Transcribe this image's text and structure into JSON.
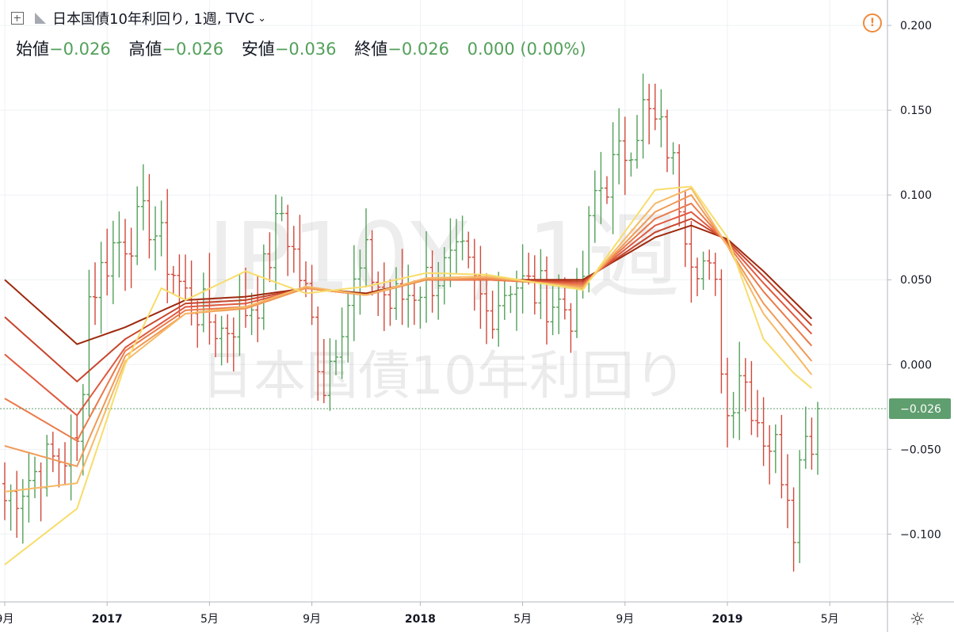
{
  "header": {
    "symbol_title": "日本国債10年利回り",
    "interval": "1週",
    "source": "TVC",
    "watermark_symbol": "JP10Y, 1週",
    "watermark_name": "日本国債10年利回り"
  },
  "ohlc": {
    "open_label": "始値",
    "open": "−0.026",
    "high_label": "高値",
    "high": "−0.026",
    "low_label": "安値",
    "low": "−0.036",
    "close_label": "終値",
    "close": "−0.026",
    "change": "0.000 (0.00%)"
  },
  "icons": {
    "alert": "alert-circle-icon",
    "settings": "gear-icon",
    "add": "plus-square-icon",
    "flag": "flag-icon"
  },
  "colors": {
    "up": "#53a05a",
    "down": "#d1483a",
    "last_price_bg": "#5f9e6e"
  },
  "chart_data": {
    "type": "ohlc",
    "y_ticks": [
      0.2,
      0.15,
      0.1,
      0.05,
      0.0,
      -0.05,
      -0.1
    ],
    "y_tick_labels": [
      "0.200",
      "0.150",
      "0.100",
      "0.050",
      "0.000",
      "−0.050",
      "−0.100"
    ],
    "ylim": [
      -0.14,
      0.215
    ],
    "x_ticks": [
      {
        "label": "9月",
        "i": 0
      },
      {
        "label": "2017",
        "i": 17
      },
      {
        "label": "5月",
        "i": 34
      },
      {
        "label": "9月",
        "i": 51
      },
      {
        "label": "2018",
        "i": 69
      },
      {
        "label": "5月",
        "i": 86
      },
      {
        "label": "9月",
        "i": 103
      },
      {
        "label": "2019",
        "i": 120
      },
      {
        "label": "5月",
        "i": 137
      }
    ],
    "n_bars": 136,
    "last_price": -0.026,
    "last_price_label": "−0.026",
    "anchors": [
      [
        0,
        -0.08
      ],
      [
        6,
        -0.06
      ],
      [
        12,
        -0.05
      ],
      [
        14,
        0.04
      ],
      [
        18,
        0.07
      ],
      [
        24,
        0.085
      ],
      [
        30,
        0.04
      ],
      [
        36,
        0.02
      ],
      [
        42,
        0.04
      ],
      [
        46,
        0.09
      ],
      [
        50,
        0.04
      ],
      [
        53,
        -0.01
      ],
      [
        56,
        0.03
      ],
      [
        60,
        0.06
      ],
      [
        64,
        0.035
      ],
      [
        70,
        0.05
      ],
      [
        76,
        0.06
      ],
      [
        80,
        0.03
      ],
      [
        84,
        0.05
      ],
      [
        90,
        0.04
      ],
      [
        95,
        0.03
      ],
      [
        98,
        0.1
      ],
      [
        102,
        0.12
      ],
      [
        106,
        0.15
      ],
      [
        110,
        0.13
      ],
      [
        114,
        0.07
      ],
      [
        116,
        0.06
      ],
      [
        118,
        0.04
      ],
      [
        120,
        -0.03
      ],
      [
        122,
        0.0
      ],
      [
        126,
        -0.04
      ],
      [
        128,
        -0.05
      ],
      [
        130,
        -0.07
      ],
      [
        131,
        -0.09
      ],
      [
        133,
        -0.03
      ],
      [
        134,
        -0.05
      ],
      [
        135,
        -0.026
      ]
    ],
    "ribbons": [
      {
        "color": "#9e2a0f",
        "points": [
          [
            0,
            0.05
          ],
          [
            12,
            0.012
          ],
          [
            20,
            0.022
          ],
          [
            30,
            0.038
          ],
          [
            40,
            0.04
          ],
          [
            50,
            0.045
          ],
          [
            60,
            0.042
          ],
          [
            70,
            0.05
          ],
          [
            80,
            0.05
          ],
          [
            96,
            0.05
          ],
          [
            108,
            0.075
          ],
          [
            114,
            0.082
          ],
          [
            120,
            0.074
          ],
          [
            126,
            0.055
          ],
          [
            134,
            0.027
          ]
        ]
      },
      {
        "color": "#c7452c",
        "points": [
          [
            0,
            0.028
          ],
          [
            12,
            -0.01
          ],
          [
            20,
            0.015
          ],
          [
            30,
            0.036
          ],
          [
            40,
            0.038
          ],
          [
            50,
            0.045
          ],
          [
            60,
            0.041
          ],
          [
            70,
            0.05
          ],
          [
            80,
            0.05
          ],
          [
            96,
            0.049
          ],
          [
            108,
            0.078
          ],
          [
            114,
            0.086
          ],
          [
            120,
            0.073
          ],
          [
            126,
            0.052
          ],
          [
            134,
            0.023
          ]
        ]
      },
      {
        "color": "#e05a40",
        "points": [
          [
            0,
            0.006
          ],
          [
            12,
            -0.03
          ],
          [
            20,
            0.01
          ],
          [
            30,
            0.034
          ],
          [
            40,
            0.036
          ],
          [
            50,
            0.045
          ],
          [
            60,
            0.041
          ],
          [
            70,
            0.05
          ],
          [
            80,
            0.05
          ],
          [
            96,
            0.048
          ],
          [
            108,
            0.082
          ],
          [
            114,
            0.09
          ],
          [
            120,
            0.072
          ],
          [
            126,
            0.048
          ],
          [
            134,
            0.018
          ]
        ]
      },
      {
        "color": "#ea7a4a",
        "points": [
          [
            0,
            -0.02
          ],
          [
            12,
            -0.045
          ],
          [
            20,
            0.008
          ],
          [
            30,
            0.032
          ],
          [
            40,
            0.034
          ],
          [
            50,
            0.045
          ],
          [
            60,
            0.041
          ],
          [
            70,
            0.05
          ],
          [
            80,
            0.05
          ],
          [
            96,
            0.047
          ],
          [
            108,
            0.086
          ],
          [
            114,
            0.095
          ],
          [
            120,
            0.071
          ],
          [
            126,
            0.043
          ],
          [
            134,
            0.011
          ]
        ]
      },
      {
        "color": "#f09a58",
        "points": [
          [
            0,
            -0.048
          ],
          [
            12,
            -0.06
          ],
          [
            20,
            0.005
          ],
          [
            30,
            0.03
          ],
          [
            40,
            0.033
          ],
          [
            50,
            0.045
          ],
          [
            60,
            0.041
          ],
          [
            70,
            0.05
          ],
          [
            80,
            0.051
          ],
          [
            96,
            0.046
          ],
          [
            108,
            0.09
          ],
          [
            114,
            0.1
          ],
          [
            120,
            0.07
          ],
          [
            126,
            0.036
          ],
          [
            134,
            0.002
          ]
        ]
      },
      {
        "color": "#f6b966",
        "points": [
          [
            0,
            -0.075
          ],
          [
            12,
            -0.07
          ],
          [
            20,
            0.002
          ],
          [
            30,
            0.03
          ],
          [
            40,
            0.034
          ],
          [
            50,
            0.046
          ],
          [
            60,
            0.041
          ],
          [
            70,
            0.051
          ],
          [
            80,
            0.052
          ],
          [
            96,
            0.045
          ],
          [
            108,
            0.095
          ],
          [
            114,
            0.104
          ],
          [
            120,
            0.07
          ],
          [
            126,
            0.03
          ],
          [
            134,
            -0.006
          ]
        ]
      },
      {
        "color": "#f7dd6b",
        "points": [
          [
            0,
            -0.118
          ],
          [
            12,
            -0.085
          ],
          [
            20,
            0.0
          ],
          [
            26,
            0.045
          ],
          [
            30,
            0.038
          ],
          [
            40,
            0.055
          ],
          [
            50,
            0.042
          ],
          [
            60,
            0.046
          ],
          [
            70,
            0.054
          ],
          [
            80,
            0.053
          ],
          [
            96,
            0.044
          ],
          [
            108,
            0.103
          ],
          [
            114,
            0.105
          ],
          [
            120,
            0.075
          ],
          [
            126,
            0.015
          ],
          [
            131,
            -0.005
          ],
          [
            134,
            -0.014
          ]
        ]
      }
    ]
  }
}
